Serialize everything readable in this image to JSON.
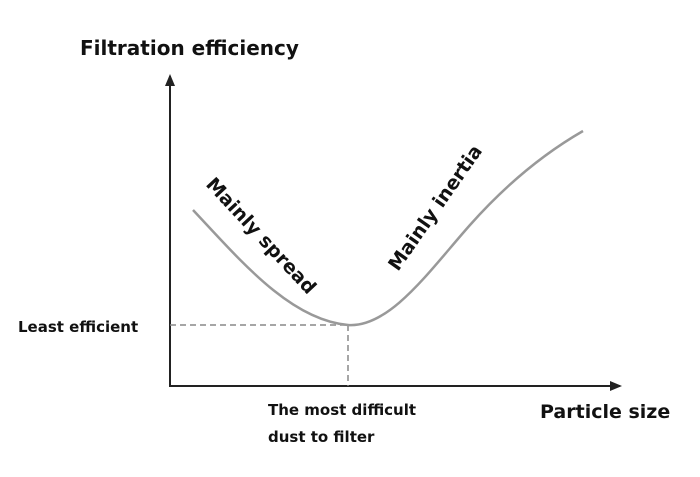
{
  "axes": {
    "y_label": "Filtration efficiency",
    "x_label": "Particle size"
  },
  "annotations": {
    "minimum_level": "Least efficient",
    "minimum_size": [
      "The most difficult",
      "dust to filter"
    ],
    "left_branch": "Mainly spread",
    "right_branch": "Mainly inertia"
  }
}
